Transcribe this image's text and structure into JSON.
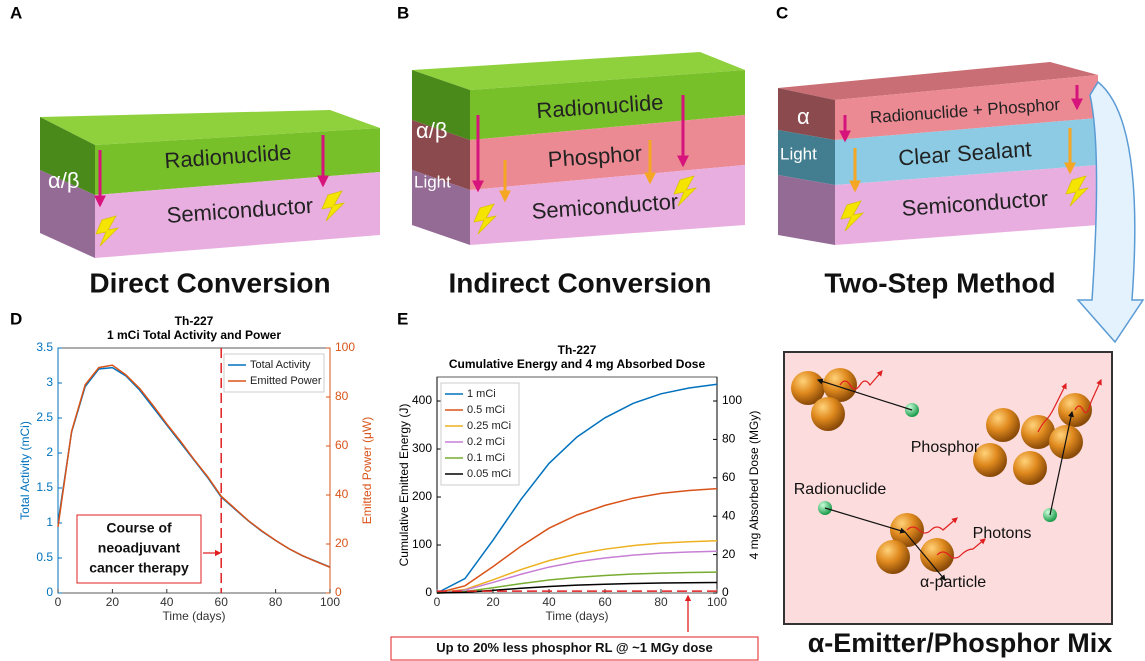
{
  "panel_letters": [
    "A",
    "B",
    "C",
    "D",
    "E"
  ],
  "diagrams": [
    {
      "layers": [
        "Radionuclide",
        "Semiconductor"
      ],
      "side_labels": [
        "α/β"
      ],
      "caption": "Direct Conversion"
    },
    {
      "layers": [
        "Radionuclide",
        "Phosphor",
        "Semiconductor"
      ],
      "side_labels": [
        "α/β",
        "Light"
      ],
      "caption": "Indirect Conversion"
    },
    {
      "layers": [
        "Radionuclide + Phosphor",
        "Clear Sealant",
        "Semiconductor"
      ],
      "side_labels": [
        "α",
        "Light"
      ],
      "caption": "Two-Step Method"
    },
    {
      "labels": [
        "Phosphor",
        "Radionuclide",
        "Photons",
        "α-particle"
      ],
      "caption": "α-Emitter/Phosphor Mix"
    }
  ],
  "chart_data": [
    {
      "type": "line",
      "title": "Th-227",
      "subtitle": "1 mCi Total Activity and Power",
      "x": [
        0,
        5,
        10,
        15,
        20,
        25,
        30,
        35,
        40,
        45,
        50,
        55,
        60,
        65,
        70,
        75,
        80,
        85,
        90,
        95,
        100
      ],
      "series": [
        {
          "name": "Total Activity",
          "color": "#0072bd",
          "values": [
            1.0,
            2.3,
            2.95,
            3.2,
            3.22,
            3.1,
            2.9,
            2.65,
            2.4,
            2.15,
            1.9,
            1.65,
            1.37,
            1.2,
            1.03,
            0.88,
            0.75,
            0.63,
            0.53,
            0.45,
            0.37
          ]
        },
        {
          "name": "Emitted Power",
          "color": "#d95319",
          "axis": "y2",
          "values": [
            27,
            66,
            85,
            92,
            93,
            89,
            83.5,
            76.5,
            69,
            62,
            54.5,
            47.5,
            39.5,
            34.5,
            29.5,
            25.3,
            21.5,
            18,
            15.2,
            12.8,
            10.5
          ]
        }
      ],
      "xlabel": "Time (days)",
      "ylabel": "Total Activity (mCi)",
      "y2label": "Emitted Power (μW)",
      "xlim": [
        0,
        100
      ],
      "xticks": [
        0,
        20,
        40,
        60,
        80,
        100
      ],
      "ylim": [
        0,
        3.5
      ],
      "yticks": [
        0,
        0.5,
        1,
        1.5,
        2,
        2.5,
        3,
        3.5
      ],
      "y2lim": [
        0,
        100
      ],
      "y2ticks": [
        0,
        20,
        40,
        60,
        80,
        100
      ],
      "legend": "upper right",
      "vline_x": 60,
      "annotation": [
        "Course of",
        "neoadjuvant",
        "cancer therapy"
      ]
    },
    {
      "type": "line",
      "title": "Th-227",
      "subtitle": "Cumulative Energy and 4 mg Absorbed Dose",
      "x": [
        0,
        10,
        20,
        30,
        40,
        50,
        60,
        70,
        80,
        90,
        100
      ],
      "series": [
        {
          "name": "1 mCi",
          "color": "#0072bd",
          "values": [
            0,
            30,
            110,
            195,
            270,
            325,
            365,
            395,
            415,
            427,
            435
          ]
        },
        {
          "name": "0.5 mCi",
          "color": "#d95319",
          "values": [
            0,
            15,
            55,
            97.5,
            135,
            162.5,
            182.5,
            197.5,
            207.5,
            213.5,
            217.5
          ]
        },
        {
          "name": "0.25 mCi",
          "color": "#edb120",
          "values": [
            0,
            7.5,
            27.5,
            48.8,
            67.5,
            81.3,
            91.3,
            98.8,
            103.8,
            106.8,
            108.8
          ]
        },
        {
          "name": "0.2 mCi",
          "color": "#c77fd6",
          "values": [
            0,
            6,
            22,
            39,
            54,
            65,
            73,
            79,
            83,
            85.4,
            87
          ]
        },
        {
          "name": "0.1 mCi",
          "color": "#77ac30",
          "values": [
            0,
            3,
            11,
            19.5,
            27,
            32.5,
            36.5,
            39.5,
            41.5,
            42.7,
            43.5
          ]
        },
        {
          "name": "0.05 mCi",
          "color": "#000000",
          "values": [
            0,
            1.5,
            5.5,
            9.8,
            13.5,
            16.3,
            18.3,
            19.8,
            20.8,
            21.4,
            21.8
          ]
        }
      ],
      "xlabel": "Time (days)",
      "ylabel": "Cumulative Emitted Energy (J)",
      "y2label": "4 mg Absorbed Dose (MGy)",
      "xlim": [
        0,
        100
      ],
      "xticks": [
        0,
        20,
        40,
        60,
        80,
        100
      ],
      "ylim": [
        0,
        450
      ],
      "yticks": [
        0,
        100,
        200,
        300,
        400
      ],
      "y2lim": [
        0,
        112.5
      ],
      "y2ticks": [
        0,
        20,
        40,
        60,
        80,
        100
      ],
      "legend": "upper left",
      "hline_y2": 1,
      "annotation": [
        "Up to 20% less phosphor RL @ ~1 MGy dose"
      ]
    }
  ]
}
